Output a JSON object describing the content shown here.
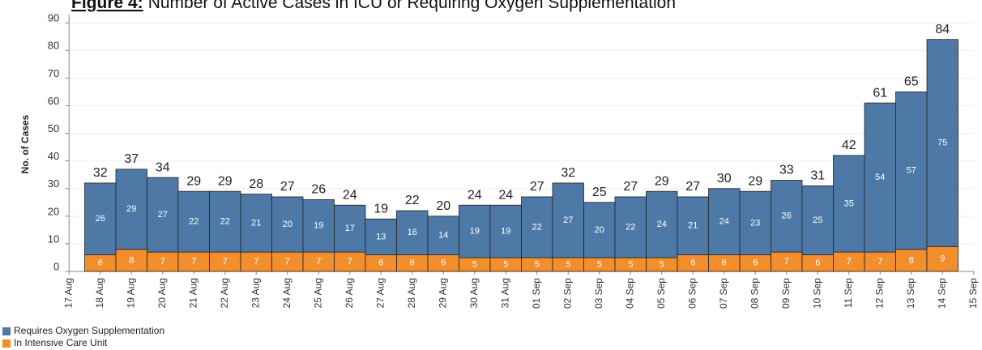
{
  "chart_data": {
    "type": "stacked_bar",
    "title_label": "Figure 4:",
    "title": "Number of Active Cases in ICU or Requiring Oxygen Supplementation",
    "ylabel": "No. of Cases",
    "categories": [
      "17 Aug",
      "18 Aug",
      "19 Aug",
      "20 Aug",
      "21 Aug",
      "22 Aug",
      "23 Aug",
      "24 Aug",
      "25 Aug",
      "26 Aug",
      "27 Aug",
      "28 Aug",
      "29 Aug",
      "30 Aug",
      "31 Aug",
      "01 Sep",
      "02 Sep",
      "03 Sep",
      "04 Sep",
      "05 Sep",
      "06 Sep",
      "07 Sep",
      "08 Sep",
      "09 Sep",
      "10 Sep",
      "11 Sep",
      "12 Sep",
      "13 Sep",
      "14 Sep",
      "15 Sep"
    ],
    "series": [
      {
        "name": "In Intensive Care Unit",
        "color": "#f28e2b",
        "values": [
          null,
          6,
          8,
          7,
          7,
          7,
          7,
          7,
          7,
          7,
          6,
          6,
          6,
          5,
          5,
          5,
          5,
          5,
          5,
          5,
          6,
          6,
          6,
          7,
          6,
          7,
          7,
          8,
          9,
          null
        ]
      },
      {
        "name": "Requires Oxygen Supplementation",
        "color": "#4e79a7",
        "values": [
          null,
          26,
          29,
          27,
          22,
          22,
          21,
          20,
          19,
          17,
          13,
          16,
          14,
          19,
          19,
          22,
          27,
          20,
          22,
          24,
          21,
          24,
          23,
          26,
          25,
          35,
          54,
          57,
          75,
          null
        ]
      }
    ],
    "totals": [
      null,
      32,
      37,
      34,
      29,
      29,
      28,
      27,
      26,
      24,
      19,
      22,
      20,
      24,
      24,
      27,
      32,
      25,
      27,
      29,
      27,
      30,
      29,
      33,
      31,
      42,
      61,
      65,
      84,
      null
    ],
    "ylim": [
      0,
      93
    ],
    "yticks": [
      0,
      10,
      20,
      30,
      40,
      50,
      60,
      70,
      80,
      90
    ],
    "grid": true
  }
}
